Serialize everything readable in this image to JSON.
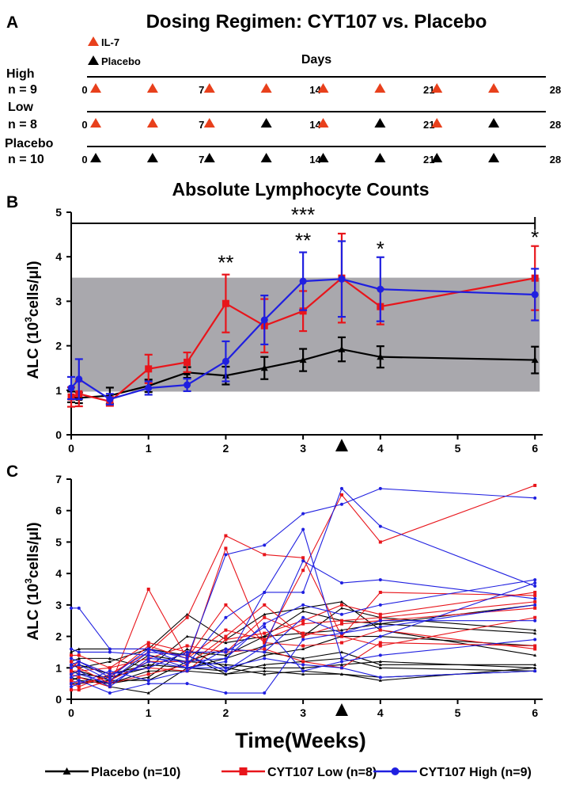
{
  "panels": {
    "a": {
      "letter": "A",
      "title": "Dosing Regimen: CYT107 vs. Placebo",
      "legend": [
        {
          "label": "IL-7",
          "color": "#e8401c"
        },
        {
          "label": "Placebo",
          "color": "#000000"
        }
      ],
      "days_label": "Days",
      "tick_labels": [
        "0",
        "7",
        "14",
        "21",
        "28"
      ],
      "tick_days": [
        0,
        7,
        14,
        21,
        28
      ],
      "dose_days": [
        0,
        3.5,
        7,
        10.5,
        14,
        17.5,
        21,
        24.5
      ],
      "rows": [
        {
          "label_line1": "High",
          "label_line2": "n = 9",
          "doses": [
            "IL-7",
            "IL-7",
            "IL-7",
            "IL-7",
            "IL-7",
            "IL-7",
            "IL-7",
            "IL-7"
          ]
        },
        {
          "label_line1": "Low",
          "label_line2": "n = 8",
          "doses": [
            "IL-7",
            "IL-7",
            "IL-7",
            "Placebo",
            "IL-7",
            "Placebo",
            "IL-7",
            "Placebo"
          ]
        },
        {
          "label_line1": "Placebo",
          "label_line2": "n = 10",
          "doses": [
            "Placebo",
            "Placebo",
            "Placebo",
            "Placebo",
            "Placebo",
            "Placebo",
            "Placebo",
            "Placebo"
          ]
        }
      ]
    },
    "b": {
      "letter": "B",
      "title": "Absolute Lymphocyte Counts",
      "ylabel_main": "ALC (10",
      "ylabel_sup": "3",
      "ylabel_end": "cells/μl)"
    },
    "c": {
      "letter": "C",
      "ylabel_main": "ALC (10",
      "ylabel_sup": "3",
      "ylabel_end": "cells/μl)",
      "xlabel": "Time(Weeks)"
    }
  },
  "legend": [
    {
      "label": "Placebo (n=10)",
      "color": "#000000",
      "marker": "triangle"
    },
    {
      "label": "CYT107 Low (n=8)",
      "color": "#e8151b",
      "marker": "square"
    },
    {
      "label": "CYT107 High (n=9)",
      "color": "#1f1fe0",
      "marker": "circle"
    }
  ],
  "colors": {
    "placebo": "#000000",
    "low": "#e8151b",
    "high": "#1f1fe0",
    "band": "#a9a8ad"
  },
  "chart_data": [
    {
      "type": "line",
      "panel": "B",
      "title": "Absolute Lymphocyte Counts",
      "xlabel": "",
      "ylabel": "ALC (10^3cells/μl)",
      "xlim": [
        0,
        6.1
      ],
      "ylim": [
        0,
        5
      ],
      "xticks": [
        0,
        1,
        2,
        3,
        4,
        5,
        6
      ],
      "yticks": [
        0,
        1,
        2,
        3,
        4,
        5
      ],
      "reference_band": [
        0.97,
        3.53
      ],
      "dose_marker_week": 3.5,
      "significance": {
        "bracket_label": "***",
        "bracket_range": [
          0,
          6
        ],
        "marks": [
          {
            "x": 2,
            "label": "**"
          },
          {
            "x": 3,
            "label": "**"
          },
          {
            "x": 4,
            "label": "*"
          },
          {
            "x": 6,
            "label": "*"
          }
        ]
      },
      "series": [
        {
          "name": "Placebo (n=10)",
          "color": "#000000",
          "marker": "triangle",
          "points": [
            {
              "x": 0,
              "y": 0.85,
              "err": 0.12
            },
            {
              "x": 0.1,
              "y": 0.83,
              "err": 0.12
            },
            {
              "x": 0.5,
              "y": 0.88,
              "err": 0.18
            },
            {
              "x": 1,
              "y": 1.1,
              "err": 0.14
            },
            {
              "x": 1.5,
              "y": 1.4,
              "err": 0.12
            },
            {
              "x": 2,
              "y": 1.33,
              "err": 0.2
            },
            {
              "x": 2.5,
              "y": 1.5,
              "err": 0.25
            },
            {
              "x": 3,
              "y": 1.68,
              "err": 0.25
            },
            {
              "x": 3.5,
              "y": 1.92,
              "err": 0.27
            },
            {
              "x": 4,
              "y": 1.75,
              "err": 0.24
            },
            {
              "x": 6,
              "y": 1.68,
              "err": 0.3
            }
          ]
        },
        {
          "name": "CYT107 Low (n=8)",
          "color": "#e8151b",
          "marker": "square",
          "points": [
            {
              "x": 0,
              "y": 0.85,
              "err": 0.22
            },
            {
              "x": 0.1,
              "y": 0.92,
              "err": 0.28
            },
            {
              "x": 0.5,
              "y": 0.75,
              "err": 0.1
            },
            {
              "x": 1,
              "y": 1.48,
              "err": 0.32
            },
            {
              "x": 1.5,
              "y": 1.63,
              "err": 0.22
            },
            {
              "x": 2,
              "y": 2.95,
              "err": 0.65
            },
            {
              "x": 2.5,
              "y": 2.45,
              "err": 0.6
            },
            {
              "x": 3,
              "y": 2.78,
              "err": 0.45
            },
            {
              "x": 3.5,
              "y": 3.52,
              "err": 1.0
            },
            {
              "x": 4,
              "y": 2.88,
              "err": 0.4
            },
            {
              "x": 6,
              "y": 3.52,
              "err": 0.72
            }
          ]
        },
        {
          "name": "CYT107 High (n=9)",
          "color": "#1f1fe0",
          "marker": "circle",
          "points": [
            {
              "x": 0,
              "y": 1.05,
              "err": 0.25
            },
            {
              "x": 0.1,
              "y": 1.25,
              "err": 0.45
            },
            {
              "x": 0.5,
              "y": 0.8,
              "err": 0.12
            },
            {
              "x": 1,
              "y": 1.05,
              "err": 0.15
            },
            {
              "x": 1.5,
              "y": 1.12,
              "err": 0.14
            },
            {
              "x": 2,
              "y": 1.65,
              "err": 0.45
            },
            {
              "x": 2.5,
              "y": 2.58,
              "err": 0.55
            },
            {
              "x": 3,
              "y": 3.45,
              "err": 0.65
            },
            {
              "x": 3.5,
              "y": 3.5,
              "err": 0.85
            },
            {
              "x": 4,
              "y": 3.27,
              "err": 0.72
            },
            {
              "x": 6,
              "y": 3.15,
              "err": 0.58
            }
          ]
        }
      ]
    },
    {
      "type": "line",
      "panel": "C",
      "xlabel": "Time(Weeks)",
      "ylabel": "ALC (10^3cells/μl)",
      "xlim": [
        0,
        6.1
      ],
      "ylim": [
        0,
        7
      ],
      "xticks": [
        0,
        1,
        2,
        3,
        4,
        5,
        6
      ],
      "yticks": [
        0,
        1,
        2,
        3,
        4,
        5,
        6,
        7
      ],
      "dose_marker_week": 3.5,
      "weeks": [
        0,
        0.1,
        0.5,
        1,
        1.5,
        2,
        2.5,
        3,
        3.5,
        4,
        6
      ],
      "series": [
        {
          "group": "Placebo",
          "color": "#000000",
          "marker": "triangle",
          "values": [
            1.5,
            1.6,
            1.6,
            1.6,
            2.7,
            1.9,
            2.7,
            2.9,
            3.1,
            2.2,
            1.4
          ]
        },
        {
          "group": "Placebo",
          "color": "#000000",
          "marker": "triangle",
          "values": [
            1.2,
            1.3,
            1.3,
            1.0,
            1.5,
            1.4,
            2.0,
            2.8,
            2.5,
            2.4,
            2.1
          ]
        },
        {
          "group": "Placebo",
          "color": "#000000",
          "marker": "triangle",
          "values": [
            1.0,
            1.1,
            0.8,
            1.1,
            1.0,
            0.9,
            1.4,
            1.6,
            2.0,
            2.0,
            1.7
          ]
        },
        {
          "group": "Placebo",
          "color": "#000000",
          "marker": "triangle",
          "values": [
            0.8,
            0.9,
            0.6,
            0.6,
            1.2,
            1.1,
            1.0,
            1.0,
            1.1,
            1.2,
            1.0
          ]
        },
        {
          "group": "Placebo",
          "color": "#000000",
          "marker": "triangle",
          "values": [
            0.7,
            0.6,
            0.5,
            0.9,
            0.9,
            0.8,
            0.9,
            0.8,
            0.8,
            0.6,
            1.0
          ]
        },
        {
          "group": "Placebo",
          "color": "#000000",
          "marker": "triangle",
          "values": [
            0.6,
            0.7,
            0.4,
            0.2,
            1.0,
            1.3,
            1.7,
            2.0,
            2.9,
            2.6,
            2.2
          ]
        },
        {
          "group": "Placebo",
          "color": "#000000",
          "marker": "triangle",
          "values": [
            0.5,
            0.5,
            0.6,
            1.4,
            1.2,
            1.6,
            1.5,
            1.3,
            1.5,
            1.1,
            1.1
          ]
        },
        {
          "group": "Placebo",
          "color": "#000000",
          "marker": "triangle",
          "values": [
            1.1,
            1.0,
            1.2,
            1.6,
            1.4,
            0.8,
            1.1,
            1.2,
            1.3,
            1.0,
            0.9
          ]
        },
        {
          "group": "Placebo",
          "color": "#000000",
          "marker": "triangle",
          "values": [
            0.9,
            0.8,
            0.7,
            1.0,
            2.0,
            1.8,
            2.0,
            2.1,
            2.2,
            2.4,
            3.0
          ]
        },
        {
          "group": "Placebo",
          "color": "#000000",
          "marker": "triangle",
          "values": [
            0.6,
            0.7,
            0.5,
            0.7,
            1.6,
            1.0,
            0.8,
            0.9,
            0.8,
            0.7,
            0.9
          ]
        },
        {
          "group": "CYT107 Low",
          "color": "#e8151b",
          "marker": "square",
          "values": [
            0.3,
            0.3,
            0.6,
            1.2,
            1.2,
            4.8,
            1.8,
            4.1,
            6.5,
            5.0,
            6.8
          ]
        },
        {
          "group": "CYT107 Low",
          "color": "#e8151b",
          "marker": "square",
          "values": [
            1.0,
            1.2,
            0.8,
            1.5,
            2.6,
            5.2,
            4.6,
            4.5,
            2.0,
            3.4,
            3.3
          ]
        },
        {
          "group": "CYT107 Low",
          "color": "#e8151b",
          "marker": "square",
          "values": [
            0.8,
            0.7,
            0.4,
            3.5,
            1.3,
            2.2,
            1.9,
            2.4,
            2.5,
            2.6,
            3.1
          ]
        },
        {
          "group": "CYT107 Low",
          "color": "#e8151b",
          "marker": "square",
          "values": [
            1.4,
            1.4,
            1.0,
            1.3,
            1.7,
            1.5,
            2.6,
            2.1,
            2.0,
            1.7,
            2.6
          ]
        },
        {
          "group": "CYT107 Low",
          "color": "#e8151b",
          "marker": "square",
          "values": [
            0.6,
            0.5,
            0.7,
            1.7,
            1.3,
            3.0,
            1.8,
            1.7,
            1.8,
            2.2,
            1.6
          ]
        },
        {
          "group": "CYT107 Low",
          "color": "#e8151b",
          "marker": "square",
          "values": [
            1.2,
            1.0,
            0.5,
            0.8,
            1.1,
            2.0,
            3.0,
            2.0,
            2.4,
            2.5,
            2.9
          ]
        },
        {
          "group": "CYT107 Low",
          "color": "#e8151b",
          "marker": "square",
          "values": [
            0.9,
            0.9,
            1.0,
            1.8,
            1.5,
            1.5,
            1.6,
            1.2,
            1.0,
            1.8,
            1.7
          ]
        },
        {
          "group": "CYT107 Low",
          "color": "#e8151b",
          "marker": "square",
          "values": [
            0.5,
            0.4,
            0.8,
            1.0,
            0.9,
            1.9,
            2.1,
            2.5,
            3.0,
            2.7,
            3.4
          ]
        },
        {
          "group": "CYT107 High",
          "color": "#1f1fe0",
          "marker": "circle",
          "values": [
            2.9,
            2.9,
            1.6,
            1.6,
            1.3,
            4.6,
            4.9,
            5.9,
            6.2,
            6.7,
            6.4
          ]
        },
        {
          "group": "CYT107 High",
          "color": "#1f1fe0",
          "marker": "circle",
          "values": [
            1.6,
            1.5,
            1.5,
            1.4,
            1.0,
            1.2,
            3.4,
            5.4,
            1.3,
            2.0,
            3.7
          ]
        },
        {
          "group": "CYT107 High",
          "color": "#1f1fe0",
          "marker": "circle",
          "values": [
            1.3,
            1.2,
            0.7,
            1.6,
            1.1,
            2.6,
            3.4,
            3.4,
            6.7,
            5.5,
            3.6
          ]
        },
        {
          "group": "CYT107 High",
          "color": "#1f1fe0",
          "marker": "circle",
          "values": [
            1.0,
            1.1,
            0.6,
            1.5,
            1.4,
            0.9,
            1.7,
            4.4,
            3.7,
            3.8,
            3.2
          ]
        },
        {
          "group": "CYT107 High",
          "color": "#1f1fe0",
          "marker": "circle",
          "values": [
            0.8,
            0.9,
            0.4,
            1.3,
            1.2,
            1.3,
            2.4,
            3.0,
            2.7,
            3.0,
            3.8
          ]
        },
        {
          "group": "CYT107 High",
          "color": "#1f1fe0",
          "marker": "circle",
          "values": [
            0.5,
            0.6,
            0.2,
            0.5,
            0.5,
            0.2,
            0.2,
            1.9,
            2.1,
            2.5,
            2.5
          ]
        },
        {
          "group": "CYT107 High",
          "color": "#1f1fe0",
          "marker": "circle",
          "values": [
            1.1,
            1.2,
            0.8,
            1.0,
            1.5,
            1.5,
            2.3,
            0.9,
            1.2,
            1.4,
            1.9
          ]
        },
        {
          "group": "CYT107 High",
          "color": "#1f1fe0",
          "marker": "circle",
          "values": [
            0.7,
            0.8,
            0.5,
            1.2,
            1.0,
            1.0,
            1.3,
            1.1,
            1.0,
            0.7,
            0.9
          ]
        },
        {
          "group": "CYT107 High",
          "color": "#1f1fe0",
          "marker": "circle",
          "values": [
            0.4,
            0.5,
            0.9,
            0.6,
            0.9,
            1.6,
            1.5,
            2.6,
            2.1,
            2.3,
            3.0
          ]
        }
      ]
    }
  ]
}
